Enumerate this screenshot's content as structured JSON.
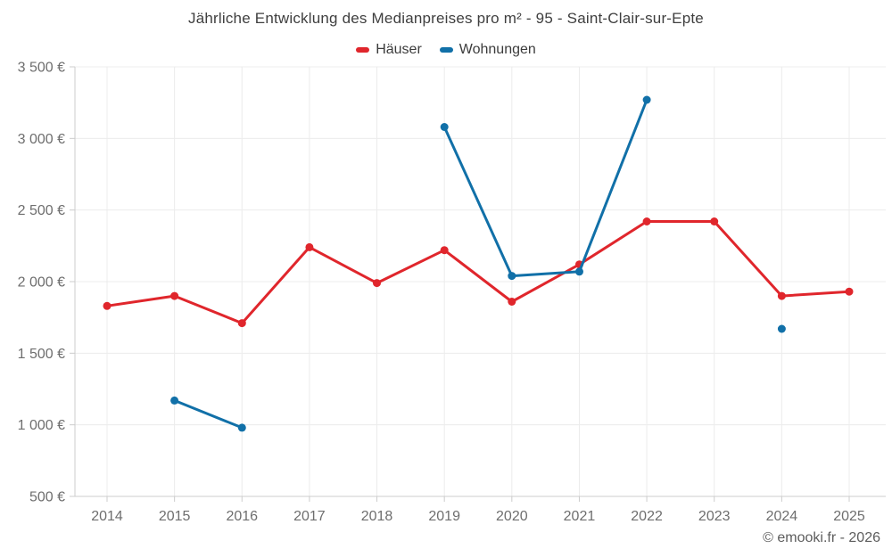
{
  "page": {
    "watermark": "© emooki.fr - 2026"
  },
  "chart_data": {
    "type": "line",
    "title": "Jährliche Entwicklung des Medianpreises pro m² - 95 - Saint-Clair-sur-Epte",
    "categories": [
      "2014",
      "2015",
      "2016",
      "2017",
      "2018",
      "2019",
      "2020",
      "2021",
      "2022",
      "2023",
      "2024",
      "2025"
    ],
    "series": [
      {
        "name": "Häuser",
        "color": "#e0262c",
        "values": [
          1830,
          1900,
          1710,
          2240,
          1990,
          2220,
          1860,
          2120,
          2420,
          2420,
          1900,
          1930
        ]
      },
      {
        "name": "Wohnungen",
        "color": "#1170a8",
        "values": [
          null,
          1170,
          980,
          null,
          null,
          3080,
          2040,
          2070,
          3270,
          null,
          1670,
          null
        ]
      }
    ],
    "ylabel": "",
    "xlabel": "",
    "ylim": [
      500,
      3500
    ],
    "ytick_step": 500,
    "ytick_labels": [
      "500 €",
      "1 000 €",
      "1 500 €",
      "2 000 €",
      "2 500 €",
      "3 000 €",
      "3 500 €"
    ],
    "grid": true,
    "legend_position": "top"
  }
}
